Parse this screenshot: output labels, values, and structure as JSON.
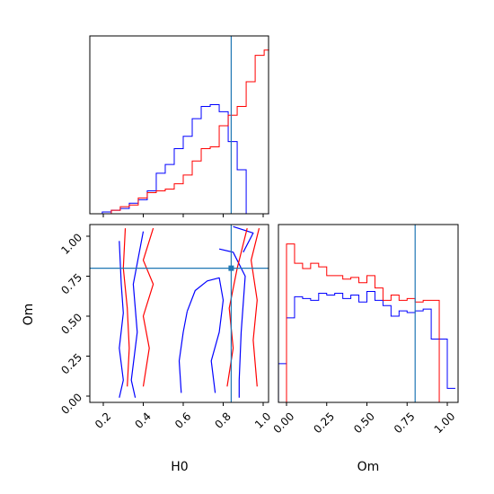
{
  "chart_data": {
    "type": "corner-plot",
    "parameters": [
      "H0",
      "Om"
    ],
    "truth": {
      "H0": 0.84,
      "Om": 0.8
    },
    "colors": {
      "blue": "#0000ff",
      "red": "#ff0000",
      "truth": "#1f77b4"
    },
    "panels": [
      {
        "id": "H0-marginal",
        "type": "histogram-step",
        "xlim": [
          0.15,
          1.03
        ],
        "bin_edges": [
          0.15,
          0.195,
          0.24,
          0.285,
          0.33,
          0.375,
          0.42,
          0.465,
          0.51,
          0.555,
          0.6,
          0.645,
          0.69,
          0.735,
          0.78,
          0.825,
          0.87,
          0.915,
          0.96,
          1.005,
          1.03
        ],
        "series": [
          {
            "color": "blue",
            "values": [
              0.0,
              0.01,
              0.02,
              0.03,
              0.06,
              0.08,
              0.13,
              0.23,
              0.28,
              0.37,
              0.44,
              0.54,
              0.61,
              0.62,
              0.58,
              0.41,
              0.25,
              0.0,
              0.0,
              0.0
            ]
          },
          {
            "color": "red",
            "values": [
              0.0,
              0.0,
              0.02,
              0.04,
              0.05,
              0.09,
              0.12,
              0.13,
              0.14,
              0.17,
              0.22,
              0.3,
              0.37,
              0.38,
              0.5,
              0.56,
              0.61,
              0.75,
              0.9,
              0.93
            ]
          }
        ]
      },
      {
        "id": "H0-Om-joint",
        "type": "contour",
        "xlabel": "H0",
        "ylabel": "Om",
        "xlim": [
          0.15,
          1.03
        ],
        "ylim": [
          -0.04,
          1.1
        ],
        "xticks": [
          "0.2",
          "0.4",
          "0.6",
          "0.8",
          "1.0"
        ],
        "yticks": [
          "0.00",
          "0.25",
          "0.50",
          "0.75",
          "1.00"
        ],
        "blue_lines": [
          [
            [
              0.28,
              0.97
            ],
            [
              0.29,
              0.7
            ],
            [
              0.3,
              0.52
            ],
            [
              0.28,
              0.3
            ],
            [
              0.3,
              0.1
            ],
            [
              0.28,
              -0.01
            ]
          ],
          [
            [
              0.4,
              1.03
            ],
            [
              0.35,
              0.7
            ],
            [
              0.37,
              0.4
            ],
            [
              0.34,
              0.1
            ],
            [
              0.36,
              -0.01
            ]
          ],
          [
            [
              0.78,
              0.92
            ],
            [
              0.85,
              0.9
            ],
            [
              0.91,
              0.75
            ],
            [
              0.89,
              0.4
            ],
            [
              0.88,
              0.1
            ],
            [
              0.88,
              -0.01
            ]
          ],
          [
            [
              0.62,
              0.53
            ],
            [
              0.66,
              0.66
            ],
            [
              0.72,
              0.72
            ],
            [
              0.78,
              0.74
            ],
            [
              0.8,
              0.6
            ],
            [
              0.78,
              0.4
            ],
            [
              0.74,
              0.22
            ],
            [
              0.76,
              0.02
            ]
          ],
          [
            [
              0.62,
              0.53
            ],
            [
              0.6,
              0.4
            ],
            [
              0.58,
              0.22
            ],
            [
              0.59,
              0.02
            ]
          ],
          [
            [
              0.85,
              1.06
            ],
            [
              0.95,
              1.02
            ],
            [
              0.9,
              0.9
            ]
          ]
        ],
        "red_lines": [
          [
            [
              0.31,
              1.05
            ],
            [
              0.3,
              0.8
            ],
            [
              0.32,
              0.55
            ],
            [
              0.33,
              0.3
            ],
            [
              0.32,
              0.06
            ]
          ],
          [
            [
              0.45,
              1.05
            ],
            [
              0.4,
              0.85
            ],
            [
              0.45,
              0.7
            ],
            [
              0.4,
              0.5
            ],
            [
              0.43,
              0.3
            ],
            [
              0.4,
              0.06
            ]
          ],
          [
            [
              0.82,
              0.06
            ],
            [
              0.85,
              0.3
            ],
            [
              0.83,
              0.55
            ],
            [
              0.87,
              0.8
            ],
            [
              0.92,
              1.05
            ]
          ],
          [
            [
              0.98,
              1.05
            ],
            [
              0.94,
              0.85
            ],
            [
              0.97,
              0.6
            ],
            [
              0.95,
              0.35
            ],
            [
              0.97,
              0.06
            ]
          ]
        ]
      },
      {
        "id": "Om-marginal",
        "type": "histogram-step",
        "xlabel": "Om",
        "xlim": [
          -0.05,
          1.05
        ],
        "xticks": [
          "0.00",
          "0.25",
          "0.50",
          "0.75",
          "1.00"
        ],
        "bin_edges": [
          -0.05,
          0.0,
          0.05,
          0.1,
          0.15,
          0.2,
          0.25,
          0.3,
          0.35,
          0.4,
          0.45,
          0.5,
          0.55,
          0.6,
          0.65,
          0.7,
          0.75,
          0.8,
          0.85,
          0.9,
          0.95,
          1.0,
          1.05
        ],
        "series": [
          {
            "color": "blue",
            "values": [
              0.22,
              0.48,
              0.6,
              0.59,
              0.58,
              0.62,
              0.61,
              0.62,
              0.59,
              0.61,
              0.57,
              0.63,
              0.58,
              0.55,
              0.49,
              0.52,
              0.51,
              0.52,
              0.53,
              0.36,
              0.36,
              0.08
            ]
          },
          {
            "color": "red",
            "values": [
              0.0,
              0.9,
              0.79,
              0.76,
              0.79,
              0.77,
              0.72,
              0.72,
              0.7,
              0.71,
              0.68,
              0.72,
              0.65,
              0.58,
              0.61,
              0.58,
              0.59,
              0.57,
              0.58,
              0.58,
              0.0,
              0.0
            ]
          }
        ]
      }
    ]
  }
}
